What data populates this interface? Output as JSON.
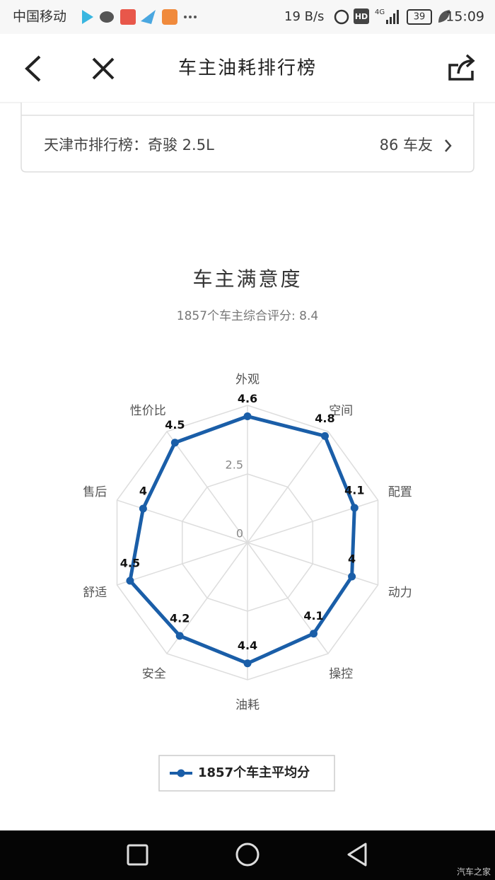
{
  "status_bar": {
    "carrier": "中国移动",
    "speed": "19 B/s",
    "network": "4G",
    "hd": "HD",
    "battery": "39",
    "time": "15:09"
  },
  "nav": {
    "title": "车主油耗排行榜"
  },
  "ranking": {
    "label": "天津市排行榜：奇骏 2.5L",
    "count": "86 车友"
  },
  "chart_data": {
    "type": "radar",
    "title": "车主满意度",
    "subtitle": "1857个车主综合评分: 8.4",
    "categories": [
      "外观",
      "空间",
      "配置",
      "动力",
      "操控",
      "油耗",
      "安全",
      "舒适",
      "售后",
      "性价比"
    ],
    "series": [
      {
        "name": "1857个车主平均分",
        "color": "#1a5ea8",
        "values": [
          4.6,
          4.8,
          4.1,
          4,
          4.1,
          4.4,
          4.2,
          4.5,
          4,
          4.5
        ]
      }
    ],
    "rlim": [
      0,
      5
    ],
    "rticks": [
      0,
      2.5
    ],
    "grid": true,
    "legend": "bottom"
  },
  "watermark": "汽车之家"
}
